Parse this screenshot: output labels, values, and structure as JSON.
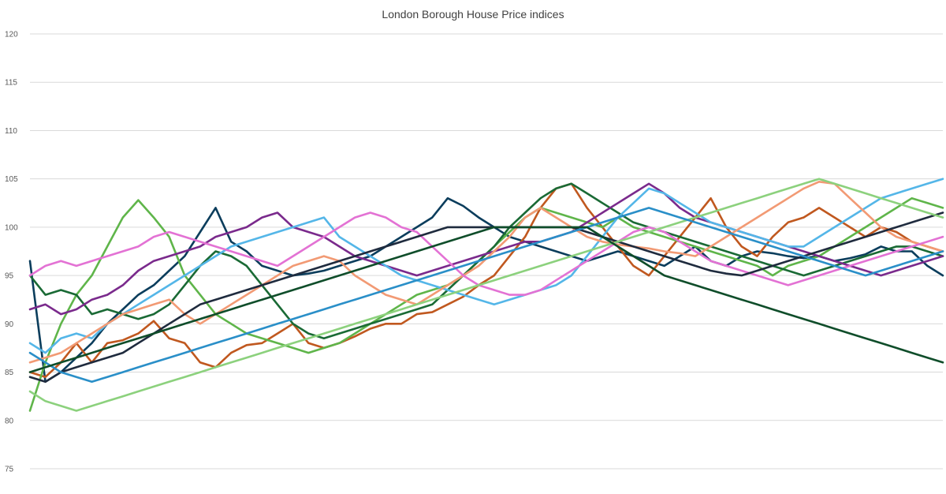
{
  "chart_data": {
    "type": "line",
    "title": "London Borough House Price indices",
    "xlabel": "",
    "ylabel": "",
    "ylim": [
      75,
      120
    ],
    "yticks": [
      75,
      80,
      85,
      90,
      95,
      100,
      105,
      110,
      115,
      120
    ],
    "grid": "horizontal",
    "legend": "none",
    "n_points": 60,
    "series": [
      {
        "color": "#0b3d5c",
        "values": [
          96.5,
          84,
          85,
          86.5,
          88,
          90,
          91.5,
          93,
          94,
          95.5,
          97,
          99.5,
          102,
          98.5,
          97.5,
          96,
          95.5,
          95,
          95.2,
          95.5,
          96,
          96.5,
          97,
          98,
          99,
          100,
          101,
          103,
          102.2,
          101,
          100,
          99,
          98.5,
          98,
          97.5,
          97,
          96.5,
          97,
          97.5,
          97,
          96.5,
          96,
          97,
          98,
          96.5,
          96,
          97,
          97.5,
          97.3,
          97,
          96.8,
          97,
          96.5,
          96.8,
          97.2,
          98,
          97.5,
          97.5,
          96,
          95
        ]
      },
      {
        "color": "#c0581f",
        "values": [
          85,
          84.5,
          86,
          88,
          86,
          88,
          88.3,
          89,
          90.3,
          88.5,
          88,
          86,
          85.5,
          87,
          87.8,
          88,
          89,
          90,
          88,
          87.5,
          88,
          88.7,
          89.5,
          90,
          90,
          91,
          91.2,
          92,
          92.8,
          94,
          95,
          97,
          99,
          102,
          104,
          104.5,
          102,
          100,
          98,
          96,
          95,
          97,
          99,
          101,
          103,
          100,
          98,
          97,
          99,
          100.5,
          101,
          102,
          101,
          100,
          99,
          100,
          99.5,
          98.5,
          98,
          97.5
        ]
      },
      {
        "color": "#5fb54a",
        "values": [
          81,
          86,
          90,
          93,
          95,
          98,
          101,
          102.8,
          101,
          99,
          95,
          93,
          91,
          90,
          89,
          88.5,
          88,
          87.5,
          87,
          87.5,
          88,
          89,
          90,
          91,
          92,
          93,
          93.5,
          94,
          95,
          96.5,
          98,
          99.5,
          101,
          102,
          101.5,
          101,
          100.5,
          100,
          101,
          100,
          99.5,
          99,
          98.5,
          98,
          97.5,
          97,
          96.5,
          96,
          95,
          96,
          96.5,
          97,
          98,
          99,
          100,
          101,
          102,
          103,
          102.5,
          102
        ]
      },
      {
        "color": "#1a6a35",
        "values": [
          95,
          93,
          93.5,
          93,
          91,
          91.5,
          91,
          90.5,
          91,
          92,
          94,
          96,
          97.5,
          97,
          96,
          94,
          92,
          90,
          89,
          88.5,
          89,
          89.5,
          90,
          90.5,
          91,
          91.5,
          92,
          93.5,
          95,
          96.5,
          98,
          100,
          101.5,
          103,
          104,
          104.5,
          103.5,
          102.5,
          101.5,
          100.5,
          100,
          99.5,
          99,
          98.5,
          98,
          97.5,
          97,
          96.5,
          96,
          95.5,
          95,
          95.5,
          96,
          96.5,
          97,
          97.5,
          98,
          98,
          97.5,
          97
        ]
      },
      {
        "color": "#7a2a8c",
        "values": [
          91.5,
          92,
          91,
          91.5,
          92.5,
          93,
          94,
          95.5,
          96.5,
          97,
          97.5,
          98,
          99,
          99.5,
          100,
          101,
          101.5,
          100,
          99.5,
          99,
          98,
          97,
          96.5,
          96,
          95.5,
          95,
          95.5,
          96,
          96.5,
          97,
          97.5,
          98,
          98.5,
          98.5,
          99,
          99.5,
          100.5,
          101.5,
          102.5,
          103.5,
          104.5,
          103.5,
          102,
          101,
          100.5,
          100,
          99.5,
          99,
          98.5,
          98,
          97.5,
          97,
          96.5,
          96,
          95.5,
          95,
          95.5,
          96,
          96.5,
          97
        ]
      },
      {
        "color": "#54b6e8",
        "values": [
          88,
          87,
          88.5,
          89,
          88.5,
          90,
          91,
          92,
          93,
          94,
          95,
          96,
          97,
          98,
          98.5,
          99,
          99.5,
          100,
          100.5,
          101,
          99,
          98,
          97,
          96,
          95,
          94.5,
          94,
          93.5,
          93,
          92.5,
          92,
          92.5,
          93,
          93.5,
          94,
          95,
          97,
          99,
          101,
          102.5,
          104,
          103.5,
          102.5,
          101.5,
          100.5,
          100,
          99.5,
          99,
          98.5,
          98,
          98,
          99,
          100,
          101,
          102,
          103,
          103.5,
          104,
          104.5,
          105
        ]
      },
      {
        "color": "#f29a74",
        "values": [
          86,
          86.5,
          87,
          88,
          89,
          90,
          91,
          91.5,
          92,
          92.5,
          91,
          90,
          91,
          92,
          93,
          94,
          95,
          96,
          96.5,
          97,
          96.5,
          95,
          94,
          93,
          92.5,
          92,
          93,
          94,
          95,
          96,
          97.5,
          99,
          101,
          102,
          101,
          100,
          99,
          98.5,
          98.2,
          98,
          97.8,
          97.5,
          97.3,
          97,
          98,
          99,
          100,
          101,
          102,
          103,
          104,
          104.7,
          104.5,
          103,
          101.5,
          100,
          99,
          98.5,
          98,
          97.5
        ]
      },
      {
        "color": "#e372d4",
        "values": [
          95,
          96,
          96.5,
          96,
          96.5,
          97,
          97.5,
          98,
          99,
          99.5,
          99,
          98.5,
          98,
          97.5,
          97,
          96.5,
          96,
          97,
          98,
          99,
          100,
          101,
          101.5,
          101,
          100,
          99.5,
          98,
          96.5,
          95,
          94,
          93.5,
          93,
          93,
          93.5,
          94.5,
          95.5,
          96.5,
          97.5,
          98.5,
          99.5,
          100,
          99.5,
          98.5,
          97.5,
          96.5,
          96,
          95.5,
          95,
          94.5,
          94,
          94.5,
          95,
          95.5,
          96,
          96.5,
          97,
          97.5,
          98,
          98.5,
          99
        ]
      },
      {
        "color": "#1f2b3e",
        "values": [
          84.5,
          84,
          85,
          85.5,
          86,
          86.5,
          87,
          88,
          89,
          90,
          91,
          92,
          92.5,
          93,
          93.5,
          94,
          94.5,
          95,
          95.5,
          96,
          96.5,
          97,
          97.5,
          98,
          98.5,
          99,
          99.5,
          100,
          100,
          100,
          100,
          100,
          100,
          100,
          100,
          100,
          99.5,
          99,
          98.5,
          98,
          97.5,
          97,
          96.5,
          96,
          95.5,
          95.2,
          95,
          95.5,
          96,
          96.5,
          97,
          97.5,
          98,
          98.5,
          99,
          99.5,
          100,
          100.5,
          101,
          101.5
        ]
      },
      {
        "color": "#8cd17d",
        "values": [
          83,
          82,
          81.5,
          81,
          81.5,
          82,
          82.5,
          83,
          83.5,
          84,
          84.5,
          85,
          85.5,
          86,
          86.5,
          87,
          87.5,
          88,
          88.5,
          89,
          89.5,
          90,
          90.5,
          91,
          91.5,
          92,
          92.5,
          93,
          93.5,
          94,
          94.5,
          95,
          95.5,
          96,
          96.5,
          97,
          97.5,
          98,
          98.5,
          99,
          99.5,
          100,
          100.5,
          101,
          101.5,
          102,
          102.5,
          103,
          103.5,
          104,
          104.5,
          105,
          104.5,
          104,
          103.5,
          103,
          102.5,
          102,
          101.5,
          101
        ]
      },
      {
        "color": "#2a8fc8",
        "values": [
          87,
          86,
          85,
          84.5,
          84,
          84.5,
          85,
          85.5,
          86,
          86.5,
          87,
          87.5,
          88,
          88.5,
          89,
          89.5,
          90,
          90.5,
          91,
          91.5,
          92,
          92.5,
          93,
          93.5,
          94,
          94.5,
          95,
          95.5,
          96,
          96.5,
          97,
          97.5,
          98,
          98.5,
          99,
          99.5,
          100,
          100.5,
          101,
          101.5,
          102,
          101.5,
          101,
          100.5,
          100,
          99.5,
          99,
          98.5,
          98,
          97.5,
          97,
          96.5,
          96,
          95.5,
          95,
          95.5,
          96,
          96.5,
          97,
          97.5
        ]
      },
      {
        "color": "#0f4d2a",
        "values": [
          85,
          85.5,
          86,
          86.5,
          87,
          87.5,
          88,
          88.5,
          89,
          89.5,
          90,
          90.5,
          91,
          91.5,
          92,
          92.5,
          93,
          93.5,
          94,
          94.5,
          95,
          95.5,
          96,
          96.5,
          97,
          97.5,
          98,
          98.5,
          99,
          99.5,
          100,
          100,
          100,
          100,
          100,
          100,
          100,
          99,
          98,
          97,
          96,
          95,
          94.5,
          94,
          93.5,
          93,
          92.5,
          92,
          91.5,
          91,
          90.5,
          90,
          89.5,
          89,
          88.5,
          88,
          87.5,
          87,
          86.5,
          86
        ]
      }
    ]
  }
}
